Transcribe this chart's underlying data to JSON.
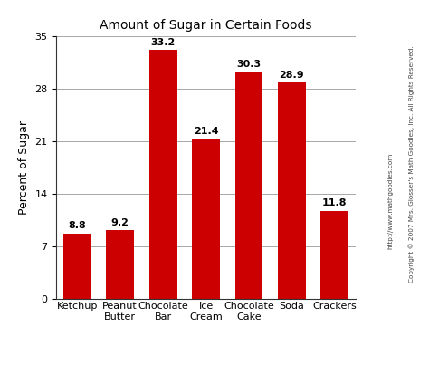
{
  "title": "Amount of Sugar in Certain Foods",
  "ylabel": "Percent of Sugar",
  "categories": [
    "Ketchup",
    "Peanut\nButter",
    "Chocolate\nBar",
    "Ice\nCream",
    "Chocolate\nCake",
    "Soda",
    "Crackers"
  ],
  "values": [
    8.8,
    9.2,
    33.2,
    21.4,
    30.3,
    28.9,
    11.8
  ],
  "bar_color": "#cc0000",
  "ylim": [
    0,
    35
  ],
  "yticks": [
    0,
    7,
    14,
    21,
    28,
    35
  ],
  "label_fontsize": 8,
  "title_fontsize": 10,
  "ylabel_fontsize": 9,
  "tick_fontsize": 8,
  "bar_width": 0.65,
  "copyright_line1": "Copyright © 2007 Mrs. Glosser's Math Goodies, Inc. All Rights Reserved.",
  "copyright_line2": "http://www.mathgoodies.com",
  "background_color": "#ffffff",
  "grid_color": "#999999"
}
